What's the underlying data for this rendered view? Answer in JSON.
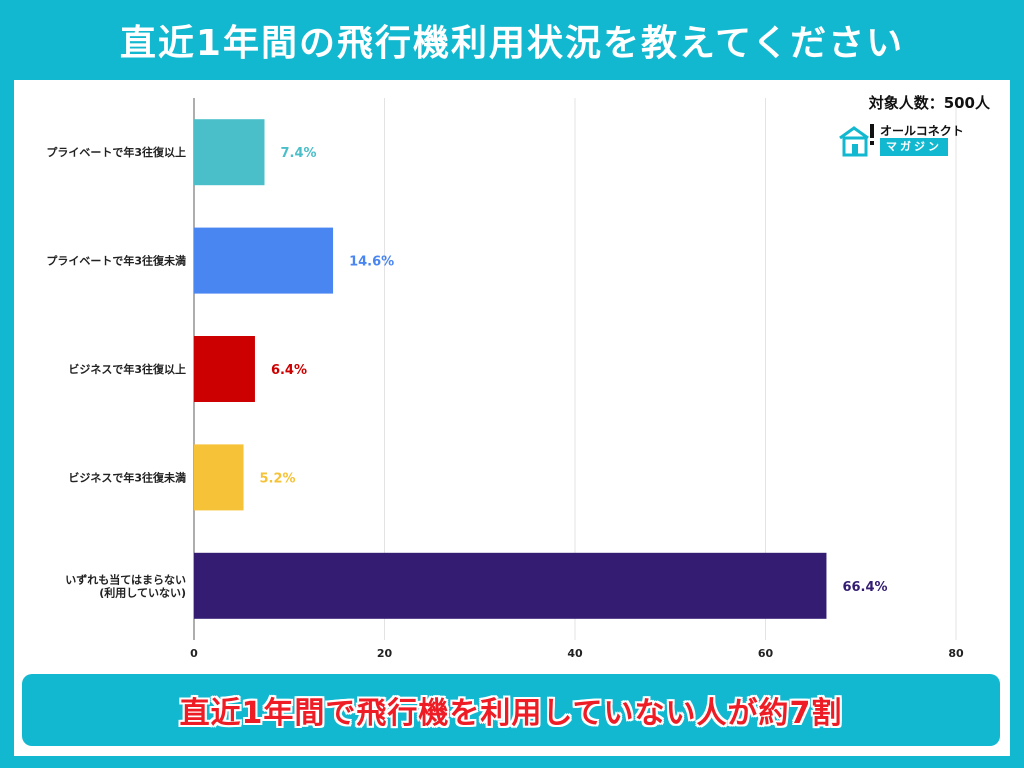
{
  "header": {
    "title": "直近1年間の飛行機利用状況を教えてください"
  },
  "sample_size": "対象人数：500人",
  "logo": {
    "top_text": "オールコネクト",
    "bottom_text": "マガジン"
  },
  "banner": {
    "text": "直近1年間で飛行機を利用していない人が約7割"
  },
  "chart_data": {
    "type": "bar",
    "orientation": "horizontal",
    "categories": [
      [
        "プライベートで年3往復以上"
      ],
      [
        "プライベートで年3往復未満"
      ],
      [
        "ビジネスで年3往復以上"
      ],
      [
        "ビジネスで年3往復未満"
      ],
      [
        "いずれも当てはまらない",
        "(利用していない)"
      ]
    ],
    "values": [
      7.4,
      14.6,
      6.4,
      5.2,
      66.4
    ],
    "value_labels": [
      "7.4%",
      "14.6%",
      "6.4%",
      "5.2%",
      "66.4%"
    ],
    "colors": [
      "#4bbfc9",
      "#4a86f2",
      "#cc0000",
      "#f6c237",
      "#331c72"
    ],
    "xlim": [
      0,
      80
    ],
    "xticks": [
      0,
      20,
      40,
      60,
      80
    ],
    "grid": true,
    "title": "",
    "xlabel": "",
    "ylabel": ""
  }
}
